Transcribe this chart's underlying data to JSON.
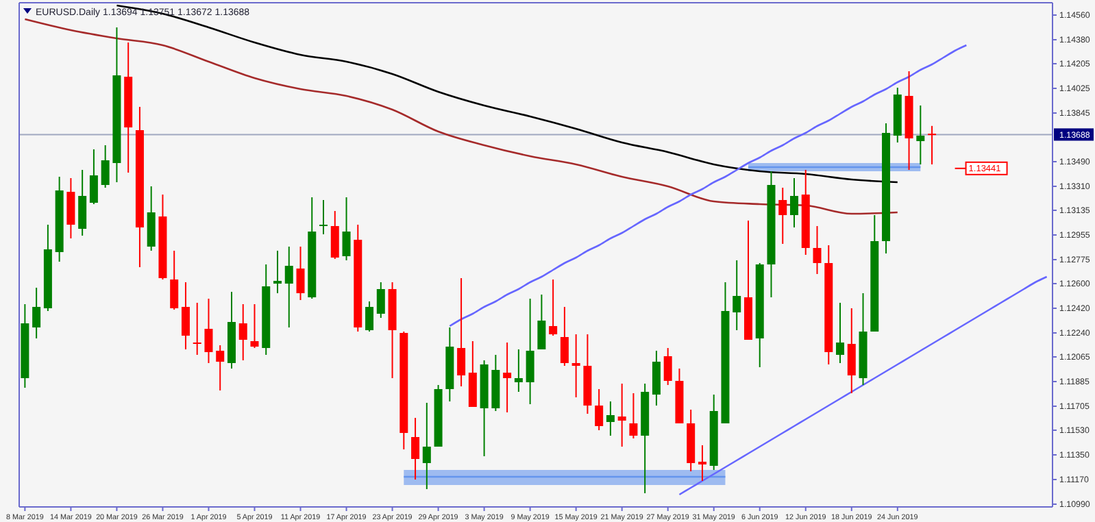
{
  "chart_data": {
    "type": "candlestick",
    "title": "EURUSD.Daily 1.13694 1.13751 1.13672 1.13688",
    "categories": [
      "8 Mar 2019",
      null,
      null,
      null,
      "14 Mar 2019",
      null,
      null,
      null,
      "20 Mar 2019",
      null,
      null,
      null,
      "26 Mar 2019",
      null,
      null,
      null,
      "1 Apr 2019",
      null,
      null,
      null,
      "5 Apr 2019",
      null,
      null,
      null,
      "11 Apr 2019",
      null,
      null,
      null,
      "17 Apr 2019",
      null,
      null,
      null,
      "23 Apr 2019",
      null,
      null,
      null,
      "29 Apr 2019",
      null,
      null,
      null,
      "3 May 2019",
      null,
      null,
      null,
      "9 May 2019",
      null,
      null,
      null,
      "15 May 2019",
      null,
      null,
      null,
      "21 May 2019",
      null,
      null,
      null,
      "27 May 2019",
      null,
      null,
      null,
      "31 May 2019",
      null,
      null,
      null,
      "6 Jun 2019",
      null,
      null,
      null,
      "12 Jun 2019",
      null,
      null,
      null,
      "18 Jun 2019",
      null,
      null,
      null,
      "24 Jun 2019",
      null,
      null,
      null,
      null,
      null,
      null,
      null,
      null,
      null,
      null,
      null,
      null,
      null
    ],
    "ohlc": [
      [
        1.1191,
        1.1245,
        1.1184,
        1.1231
      ],
      [
        1.1228,
        1.1257,
        1.122,
        1.1243
      ],
      [
        1.1242,
        1.1303,
        1.124,
        1.1285
      ],
      [
        1.1283,
        1.1338,
        1.1276,
        1.1328
      ],
      [
        1.1327,
        1.1337,
        1.1293,
        1.1303
      ],
      [
        1.13,
        1.1343,
        1.1295,
        1.1324
      ],
      [
        1.1319,
        1.1358,
        1.1318,
        1.1339
      ],
      [
        1.1332,
        1.1361,
        1.133,
        1.135
      ],
      [
        1.1348,
        1.1447,
        1.1334,
        1.1412
      ],
      [
        1.1411,
        1.1436,
        1.1341,
        1.1374
      ],
      [
        1.1372,
        1.1389,
        1.1272,
        1.1301
      ],
      [
        1.1287,
        1.1331,
        1.1284,
        1.1312
      ],
      [
        1.1309,
        1.1325,
        1.1263,
        1.1264
      ],
      [
        1.1263,
        1.1284,
        1.1241,
        1.1242
      ],
      [
        1.1243,
        1.1261,
        1.1212,
        1.1222
      ],
      [
        1.1217,
        1.1246,
        1.1208,
        1.1216
      ],
      [
        1.1227,
        1.1249,
        1.1202,
        1.121
      ],
      [
        1.1211,
        1.1215,
        1.1182,
        1.1203
      ],
      [
        1.1202,
        1.1254,
        1.1198,
        1.1232
      ],
      [
        1.1231,
        1.1245,
        1.1204,
        1.1219
      ],
      [
        1.1218,
        1.1245,
        1.1213,
        1.1214
      ],
      [
        1.1213,
        1.1274,
        1.1208,
        1.1258
      ],
      [
        1.126,
        1.1284,
        1.1253,
        1.1262
      ],
      [
        1.126,
        1.1287,
        1.1228,
        1.1273
      ],
      [
        1.1271,
        1.1287,
        1.1248,
        1.1253
      ],
      [
        1.125,
        1.1323,
        1.1249,
        1.1298
      ],
      [
        1.1302,
        1.1321,
        1.1296,
        1.1303
      ],
      [
        1.1302,
        1.1313,
        1.1278,
        1.1279
      ],
      [
        1.128,
        1.1323,
        1.1277,
        1.1298
      ],
      [
        1.1292,
        1.1303,
        1.1225,
        1.1228
      ],
      [
        1.1226,
        1.1247,
        1.1225,
        1.1243
      ],
      [
        1.1238,
        1.1261,
        1.1235,
        1.1256
      ],
      [
        1.1256,
        1.1261,
        1.1191,
        1.1226
      ],
      [
        1.1224,
        1.1225,
        1.1139,
        1.1151
      ],
      [
        1.1148,
        1.1162,
        1.1117,
        1.1132
      ],
      [
        1.1129,
        1.1173,
        1.111,
        1.1141
      ],
      [
        1.1141,
        1.1186,
        1.1141,
        1.1183
      ],
      [
        1.1183,
        1.1228,
        1.1174,
        1.1214
      ],
      [
        1.1213,
        1.1264,
        1.1185,
        1.1193
      ],
      [
        1.1195,
        1.1218,
        1.117,
        1.117
      ],
      [
        1.1169,
        1.1204,
        1.1134,
        1.1201
      ],
      [
        1.1169,
        1.1208,
        1.1167,
        1.1197
      ],
      [
        1.1195,
        1.1217,
        1.1166,
        1.1191
      ],
      [
        1.1188,
        1.1212,
        1.1181,
        1.1191
      ],
      [
        1.1188,
        1.1249,
        1.1172,
        1.1211
      ],
      [
        1.1212,
        1.1252,
        1.1212,
        1.1233
      ],
      [
        1.1229,
        1.1263,
        1.1222,
        1.1223
      ],
      [
        1.1221,
        1.1243,
        1.12,
        1.1202
      ],
      [
        1.1202,
        1.1223,
        1.1177,
        1.12
      ],
      [
        1.12,
        1.1223,
        1.1165,
        1.1171
      ],
      [
        1.1171,
        1.1183,
        1.1153,
        1.1156
      ],
      [
        1.1159,
        1.1174,
        1.1149,
        1.1164
      ],
      [
        1.1163,
        1.1187,
        1.1141,
        1.116
      ],
      [
        1.1158,
        1.118,
        1.1147,
        1.1149
      ],
      [
        1.1149,
        1.1187,
        1.1107,
        1.1181
      ],
      [
        1.1179,
        1.1211,
        1.1171,
        1.1203
      ],
      [
        1.1207,
        1.1213,
        1.1186,
        1.1189
      ],
      [
        1.1189,
        1.1198,
        1.1158,
        1.1158
      ],
      [
        1.1158,
        1.1168,
        1.1123,
        1.1129
      ],
      [
        1.113,
        1.1142,
        1.1116,
        1.1128
      ],
      [
        1.1127,
        1.1179,
        1.1124,
        1.1167
      ],
      [
        1.1158,
        1.1261,
        1.1158,
        1.124
      ],
      [
        1.1239,
        1.1277,
        1.1226,
        1.1251
      ],
      [
        1.125,
        1.1306,
        1.1219,
        1.1219
      ],
      [
        1.122,
        1.1275,
        1.1199,
        1.1274
      ],
      [
        1.1274,
        1.1342,
        1.125,
        1.1332
      ],
      [
        1.1321,
        1.133,
        1.1289,
        1.131
      ],
      [
        1.131,
        1.1337,
        1.1301,
        1.1324
      ],
      [
        1.1325,
        1.1343,
        1.1281,
        1.1286
      ],
      [
        1.1286,
        1.1302,
        1.1267,
        1.1275
      ],
      [
        1.1275,
        1.1288,
        1.1201,
        1.121
      ],
      [
        1.1208,
        1.1246,
        1.1202,
        1.1217
      ],
      [
        1.1216,
        1.1242,
        1.118,
        1.1193
      ],
      [
        1.1191,
        1.1253,
        1.1186,
        1.1225
      ],
      [
        1.1225,
        1.131,
        1.1225,
        1.1291
      ],
      [
        1.1291,
        1.1377,
        1.1282,
        1.137
      ],
      [
        1.1368,
        1.1403,
        1.1363,
        1.1398
      ],
      [
        1.1397,
        1.1415,
        1.1343,
        1.1366
      ],
      [
        1.1364,
        1.139,
        1.1347,
        1.1368
      ],
      [
        1.13694,
        1.13751,
        1.1347,
        1.13688
      ],
      null,
      null,
      null,
      null,
      null,
      null,
      null,
      null,
      null,
      null
    ],
    "colors": [
      "#008000",
      "#008000",
      "#008000",
      "#008000",
      "#ff0000",
      "#008000",
      "#008000",
      "#008000",
      "#008000",
      "#ff0000",
      "#ff0000",
      "#008000",
      "#ff0000",
      "#ff0000",
      "#ff0000",
      "#ff0000",
      "#ff0000",
      "#ff0000",
      "#008000",
      "#ff0000",
      "#ff0000",
      "#008000",
      "#008000",
      "#008000",
      "#ff0000",
      "#008000",
      "#008000",
      "#ff0000",
      "#008000",
      "#ff0000",
      "#008000",
      "#008000",
      "#ff0000",
      "#ff0000",
      "#ff0000",
      "#008000",
      "#008000",
      "#008000",
      "#ff0000",
      "#ff0000",
      "#008000",
      "#008000",
      "#ff0000",
      "#008000",
      "#008000",
      "#008000",
      "#ff0000",
      "#ff0000",
      "#ff0000",
      "#ff0000",
      "#ff0000",
      "#008000",
      "#ff0000",
      "#ff0000",
      "#008000",
      "#008000",
      "#ff0000",
      "#ff0000",
      "#ff0000",
      "#ff0000",
      "#008000",
      "#008000",
      "#008000",
      "#ff0000",
      "#008000",
      "#008000",
      "#ff0000",
      "#008000",
      "#ff0000",
      "#ff0000",
      "#ff0000",
      "#008000",
      "#ff0000",
      "#008000",
      "#008000",
      "#008000",
      "#008000",
      "#ff0000",
      "#008000",
      "#ff0000",
      null,
      null,
      null,
      null,
      null,
      null,
      null,
      null,
      null,
      null
    ],
    "series": [
      {
        "type": "line",
        "color": "#6495ed",
        "lower": [
          null,
          null,
          null,
          null,
          null,
          null,
          null,
          null,
          null,
          null,
          null,
          null,
          null,
          null,
          null,
          null,
          null,
          null,
          null,
          null,
          null,
          null,
          null,
          null,
          null,
          null,
          null,
          null,
          null,
          null,
          null,
          null,
          null,
          1.1113,
          1.1113,
          1.1113,
          1.1113,
          1.1113,
          1.1113,
          1.1113,
          1.1113,
          1.1113,
          1.1113,
          1.1113,
          1.1113,
          1.1113,
          1.1113,
          1.1113,
          1.1113,
          1.1113,
          1.1113,
          1.1113,
          1.1113,
          1.1113,
          1.1113,
          1.1113,
          1.1113,
          1.1113,
          1.1113,
          1.1113,
          1.1113,
          1.1113,
          null,
          null,
          null,
          null,
          null,
          null,
          null,
          null,
          null,
          null,
          null,
          null,
          null,
          null,
          null,
          null,
          null,
          null,
          null,
          null,
          null,
          null,
          null,
          null,
          null,
          null,
          null,
          null
        ],
        "upper": [
          null,
          null,
          null,
          null,
          null,
          null,
          null,
          null,
          null,
          null,
          null,
          null,
          null,
          null,
          null,
          null,
          null,
          null,
          null,
          null,
          null,
          null,
          null,
          null,
          null,
          null,
          null,
          null,
          null,
          null,
          null,
          null,
          null,
          1.1124,
          1.1124,
          1.1124,
          1.1124,
          1.1124,
          1.1124,
          1.1124,
          1.1124,
          1.1124,
          1.1124,
          1.1124,
          1.1124,
          1.1124,
          1.1124,
          1.1124,
          1.1124,
          1.1124,
          1.1124,
          1.1124,
          1.1124,
          1.1124,
          1.1124,
          1.1124,
          1.1124,
          1.1124,
          1.1124,
          1.1124,
          1.1124,
          1.1124,
          null,
          null,
          null,
          null,
          null,
          null,
          null,
          null,
          null,
          null,
          null,
          null,
          null,
          null,
          null,
          null,
          null,
          null,
          null,
          null,
          null,
          null,
          null,
          null,
          null,
          null,
          null,
          null
        ],
        "values": [
          null,
          null,
          null,
          null,
          null,
          null,
          null,
          null,
          null,
          null,
          null,
          null,
          null,
          null,
          null,
          null,
          null,
          null,
          null,
          null,
          null,
          null,
          null,
          null,
          null,
          null,
          null,
          null,
          null,
          null,
          null,
          null,
          null,
          1.1119,
          1.1119,
          1.1119,
          1.1119,
          1.1119,
          1.1119,
          1.1119,
          1.1119,
          1.1119,
          1.1119,
          1.1119,
          1.1119,
          1.1119,
          1.1119,
          1.1119,
          1.1119,
          1.1119,
          1.1119,
          1.1119,
          1.1119,
          1.1119,
          1.1119,
          1.1119,
          1.1119,
          1.1119,
          1.1119,
          1.1119,
          1.1119,
          1.1119,
          null,
          null,
          null,
          null,
          null,
          null,
          null,
          null,
          null,
          null,
          null,
          null,
          null,
          null,
          null,
          null,
          null,
          null,
          null,
          null,
          null,
          null,
          null,
          null,
          null,
          null,
          null,
          null
        ]
      },
      {
        "type": "line",
        "color": "#6495ed",
        "lower": [
          null,
          null,
          null,
          null,
          null,
          null,
          null,
          null,
          null,
          null,
          null,
          null,
          null,
          null,
          null,
          null,
          null,
          null,
          null,
          null,
          null,
          null,
          null,
          null,
          null,
          null,
          null,
          null,
          null,
          null,
          null,
          null,
          null,
          null,
          null,
          null,
          null,
          null,
          null,
          null,
          null,
          null,
          null,
          null,
          null,
          null,
          null,
          null,
          null,
          null,
          null,
          null,
          null,
          null,
          null,
          null,
          null,
          null,
          null,
          null,
          null,
          null,
          null,
          1.1342,
          1.1342,
          1.1342,
          1.1342,
          1.1342,
          1.1342,
          1.1342,
          1.1342,
          1.1342,
          1.1342,
          1.1342,
          1.1342,
          1.1342,
          1.1342,
          1.1342,
          1.1342,
          null,
          null,
          null,
          null,
          null,
          null,
          null,
          null,
          null,
          null,
          null
        ],
        "upper": [
          null,
          null,
          null,
          null,
          null,
          null,
          null,
          null,
          null,
          null,
          null,
          null,
          null,
          null,
          null,
          null,
          null,
          null,
          null,
          null,
          null,
          null,
          null,
          null,
          null,
          null,
          null,
          null,
          null,
          null,
          null,
          null,
          null,
          null,
          null,
          null,
          null,
          null,
          null,
          null,
          null,
          null,
          null,
          null,
          null,
          null,
          null,
          null,
          null,
          null,
          null,
          null,
          null,
          null,
          null,
          null,
          null,
          null,
          null,
          null,
          null,
          null,
          null,
          1.1348,
          1.1348,
          1.1348,
          1.1348,
          1.1348,
          1.1348,
          1.1348,
          1.1348,
          1.1348,
          1.1348,
          1.1348,
          1.1348,
          1.1348,
          1.1348,
          1.1348,
          1.1348,
          null,
          null,
          null,
          null,
          null,
          null,
          null,
          null,
          null,
          null,
          null
        ],
        "values": [
          null,
          null,
          null,
          null,
          null,
          null,
          null,
          null,
          null,
          null,
          null,
          null,
          null,
          null,
          null,
          null,
          null,
          null,
          null,
          null,
          null,
          null,
          null,
          null,
          null,
          null,
          null,
          null,
          null,
          null,
          null,
          null,
          null,
          null,
          null,
          null,
          null,
          null,
          null,
          null,
          null,
          null,
          null,
          null,
          null,
          null,
          null,
          null,
          null,
          null,
          null,
          null,
          null,
          null,
          null,
          null,
          null,
          null,
          null,
          null,
          null,
          null,
          null,
          1.1345,
          1.1345,
          1.1345,
          1.1345,
          1.1345,
          1.1345,
          1.1345,
          1.1345,
          1.1345,
          1.1345,
          1.1345,
          1.1345,
          1.1345,
          1.1345,
          1.1345,
          1.1345,
          null,
          null,
          null,
          null,
          null,
          null,
          null,
          null,
          null,
          null,
          null
        ]
      },
      {
        "type": "line",
        "color": "#000000",
        "x": [
          "20 Mar 2019",
          "26 Mar 2019",
          "1 Apr 2019",
          "5 Apr 2019",
          "11 Apr 2019",
          "17 Apr 2019",
          "23 Apr 2019",
          "29 Apr 2019",
          "3 May 2019",
          "9 May 2019",
          "15 May 2019",
          "21 May 2019",
          "27 May 2019",
          "31 May 2019",
          "6 Jun 2019",
          "12 Jun 2019",
          "18 Jun 2019",
          "24 Jun 2019"
        ],
        "values": [
          1.1463,
          1.1457,
          1.1447,
          1.1436,
          1.1427,
          1.1422,
          1.1413,
          1.14,
          1.139,
          1.1382,
          1.1373,
          1.1363,
          1.1356,
          1.1347,
          1.1342,
          1.134,
          1.1336,
          1.1334
        ]
      },
      {
        "type": "line",
        "color": "#a52a2a",
        "x": [
          "8 Mar 2019",
          "14 Mar 2019",
          "20 Mar 2019",
          "26 Mar 2019",
          "1 Apr 2019",
          "5 Apr 2019",
          "11 Apr 2019",
          "17 Apr 2019",
          "23 Apr 2019",
          "29 Apr 2019",
          "3 May 2019",
          "9 May 2019",
          "15 May 2019",
          "21 May 2019",
          "27 May 2019",
          "31 May 2019",
          "6 Jun 2019",
          "12 Jun 2019",
          "18 Jun 2019",
          "24 Jun 2019"
        ],
        "values": [
          1.1453,
          1.1445,
          1.1439,
          1.1434,
          1.1422,
          1.141,
          1.1402,
          1.1397,
          1.1387,
          1.1371,
          1.1361,
          1.1353,
          1.1347,
          1.1338,
          1.1331,
          1.132,
          1.1318,
          1.1317,
          1.1311,
          1.1312
        ]
      },
      {
        "type": "line",
        "color": "#6666ff",
        "values": [
          null,
          null,
          null,
          null,
          null,
          null,
          null,
          null,
          null,
          null,
          null,
          null,
          null,
          null,
          null,
          null,
          null,
          null,
          null,
          null,
          null,
          null,
          null,
          null,
          null,
          null,
          null,
          null,
          null,
          null,
          null,
          null,
          null,
          null,
          null,
          null,
          null,
          1.1229,
          1.1234,
          1.1238,
          1.1243,
          1.1247,
          1.1252,
          1.1256,
          1.1261,
          1.1265,
          1.127,
          1.1275,
          1.1279,
          1.1284,
          1.1288,
          1.1293,
          1.1297,
          1.1302,
          1.1307,
          1.1311,
          1.1316,
          1.132,
          1.1325,
          1.1329,
          1.1334,
          1.1338,
          1.1343,
          1.1348,
          1.1352,
          1.1357,
          1.1361,
          1.1366,
          1.137,
          1.1375,
          1.1379,
          1.1384,
          1.1389,
          1.1393,
          1.1398,
          1.1402,
          1.1407,
          1.1411,
          1.1416,
          1.142,
          1.1425,
          1.143,
          1.1434,
          null,
          null,
          null,
          null,
          null,
          null,
          null
        ]
      },
      {
        "type": "line",
        "color": "#6666ff",
        "values": [
          null,
          null,
          null,
          null,
          null,
          null,
          null,
          null,
          null,
          null,
          null,
          null,
          null,
          null,
          null,
          null,
          null,
          null,
          null,
          null,
          null,
          null,
          null,
          null,
          null,
          null,
          null,
          null,
          null,
          null,
          null,
          null,
          null,
          null,
          null,
          null,
          null,
          null,
          null,
          null,
          null,
          null,
          null,
          null,
          null,
          null,
          null,
          null,
          null,
          null,
          null,
          null,
          null,
          null,
          null,
          null,
          null,
          1.1106,
          1.1111,
          1.1116,
          1.1121,
          1.1126,
          1.1131,
          1.1136,
          1.1141,
          1.1146,
          1.1151,
          1.1156,
          1.1161,
          1.1166,
          1.1171,
          1.1176,
          1.1181,
          1.1186,
          1.1191,
          1.1196,
          1.1201,
          1.1206,
          1.1211,
          1.1216,
          1.1221,
          1.1226,
          1.1231,
          1.1236,
          1.1241,
          1.1246,
          1.1251,
          1.1256,
          1.1261,
          1.1265
        ]
      }
    ],
    "ylim": [
      1.1097,
      1.1465
    ],
    "yticks": [
      {
        "value": 1.1456,
        "label": "1.14560"
      },
      {
        "value": 1.1438,
        "label": "1.14380"
      },
      1.14205,
      1.14025,
      1.13845,
      {
        "value": 1.1349,
        "label": "1.13490"
      },
      {
        "value": 1.1331,
        "label": "1.13310"
      },
      1.13135,
      1.12955,
      1.12775,
      {
        "value": 1.126,
        "label": "1.12600"
      },
      {
        "value": 1.1242,
        "label": "1.12420"
      },
      {
        "value": 1.1224,
        "label": "1.12240"
      },
      1.12065,
      1.11885,
      1.11705,
      {
        "value": 1.1153,
        "label": "1.11530"
      },
      {
        "value": 1.1135,
        "label": "1.11350"
      },
      {
        "value": 1.1117,
        "label": "1.11170"
      },
      {
        "value": 1.1099,
        "label": "1.10990"
      }
    ],
    "ref_lines": [
      {
        "axis": "y",
        "value": 1.13688,
        "label": "1.13688",
        "color": "#a0a8c0"
      }
    ],
    "annotations": [
      {
        "text": "1.13441",
        "y": 1.13441
      }
    ],
    "grid": false
  }
}
